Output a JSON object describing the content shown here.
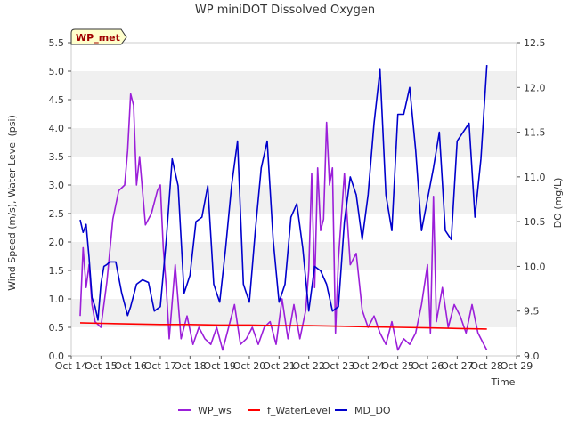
{
  "chart_data": {
    "type": "line",
    "title": "WP miniDOT Dissolved Oxygen",
    "badge": "WP_met",
    "xlabel": "Time",
    "ylabel_left": "Wind Speed (m/s), Water Level (psi)",
    "ylabel_right": "DO (mg/L)",
    "x_ticks": [
      "Oct 14",
      "Oct 15",
      "Oct 16",
      "Oct 17",
      "Oct 18",
      "Oct 19",
      "Oct 20",
      "Oct 21",
      "Oct 22",
      "Oct 23",
      "Oct 24",
      "Oct 25",
      "Oct 26",
      "Oct 27",
      "Oct 28",
      "Oct 29"
    ],
    "x_range": [
      14,
      29
    ],
    "ylim_left": [
      0.0,
      5.5
    ],
    "yticks_left": [
      "0.0",
      "0.5",
      "1.0",
      "1.5",
      "2.0",
      "2.5",
      "3.0",
      "3.5",
      "4.0",
      "4.5",
      "5.0",
      "5.5"
    ],
    "ylim_right": [
      9.0,
      12.5
    ],
    "yticks_right": [
      "9.0",
      "9.5",
      "10.0",
      "10.5",
      "11.0",
      "11.5",
      "12.0",
      "12.5"
    ],
    "grid": "horizontal bands",
    "legend_position": "bottom",
    "series": [
      {
        "name": "WP_ws",
        "color": "#9b1fd9",
        "axis": "left",
        "x": [
          14.3,
          14.4,
          14.5,
          14.6,
          14.7,
          14.8,
          15.0,
          15.2,
          15.4,
          15.6,
          15.8,
          15.9,
          16.0,
          16.1,
          16.2,
          16.3,
          16.4,
          16.5,
          16.7,
          16.9,
          17.0,
          17.1,
          17.2,
          17.3,
          17.5,
          17.7,
          17.9,
          18.1,
          18.3,
          18.5,
          18.7,
          18.9,
          19.1,
          19.3,
          19.5,
          19.7,
          19.9,
          20.1,
          20.3,
          20.5,
          20.7,
          20.9,
          21.1,
          21.3,
          21.5,
          21.7,
          21.9,
          22.0,
          22.1,
          22.2,
          22.3,
          22.4,
          22.5,
          22.6,
          22.7,
          22.8,
          22.9,
          23.0,
          23.2,
          23.4,
          23.6,
          23.8,
          24.0,
          24.2,
          24.4,
          24.6,
          24.8,
          25.0,
          25.2,
          25.4,
          25.6,
          25.8,
          26.0,
          26.1,
          26.2,
          26.3,
          26.5,
          26.7,
          26.9,
          27.1,
          27.3,
          27.5,
          27.7,
          27.9,
          28.0
        ],
        "values": [
          0.7,
          1.9,
          1.2,
          1.6,
          0.9,
          0.6,
          0.5,
          1.3,
          2.4,
          2.9,
          3.0,
          3.6,
          4.6,
          4.4,
          3.0,
          3.5,
          2.9,
          2.3,
          2.5,
          2.9,
          3.0,
          1.9,
          1.2,
          0.3,
          1.6,
          0.3,
          0.7,
          0.2,
          0.5,
          0.3,
          0.2,
          0.5,
          0.1,
          0.5,
          0.9,
          0.2,
          0.3,
          0.5,
          0.2,
          0.5,
          0.6,
          0.2,
          1.0,
          0.3,
          0.9,
          0.3,
          0.8,
          1.5,
          3.2,
          1.2,
          3.3,
          2.2,
          2.4,
          4.1,
          3.0,
          3.3,
          0.4,
          1.7,
          3.2,
          1.6,
          1.8,
          0.8,
          0.5,
          0.7,
          0.4,
          0.2,
          0.6,
          0.1,
          0.3,
          0.2,
          0.4,
          0.9,
          1.6,
          0.4,
          2.8,
          0.6,
          1.2,
          0.5,
          0.9,
          0.7,
          0.4,
          0.9,
          0.4,
          0.2,
          0.1
        ]
      },
      {
        "name": "f_WaterLevel",
        "color": "#ff0000",
        "axis": "left",
        "x": [
          14.3,
          15.0,
          16.0,
          17.0,
          18.0,
          19.0,
          20.0,
          21.0,
          22.0,
          23.0,
          24.0,
          25.0,
          26.0,
          27.0,
          28.0
        ],
        "values": [
          0.58,
          0.57,
          0.56,
          0.55,
          0.55,
          0.54,
          0.54,
          0.53,
          0.53,
          0.52,
          0.51,
          0.5,
          0.49,
          0.48,
          0.47
        ]
      },
      {
        "name": "MD_DO",
        "color": "#0000cc",
        "axis": "right",
        "x": [
          14.3,
          14.4,
          14.5,
          14.6,
          14.7,
          14.8,
          14.9,
          15.0,
          15.1,
          15.2,
          15.3,
          15.5,
          15.7,
          15.9,
          16.0,
          16.2,
          16.4,
          16.6,
          16.8,
          17.0,
          17.2,
          17.4,
          17.6,
          17.8,
          18.0,
          18.2,
          18.4,
          18.6,
          18.8,
          19.0,
          19.2,
          19.4,
          19.6,
          19.8,
          20.0,
          20.2,
          20.4,
          20.6,
          20.8,
          21.0,
          21.2,
          21.4,
          21.6,
          21.8,
          22.0,
          22.2,
          22.4,
          22.6,
          22.8,
          23.0,
          23.2,
          23.4,
          23.6,
          23.8,
          24.0,
          24.2,
          24.4,
          24.6,
          24.8,
          25.0,
          25.2,
          25.4,
          25.6,
          25.8,
          26.0,
          26.2,
          26.4,
          26.6,
          26.8,
          27.0,
          27.2,
          27.4,
          27.6,
          27.8,
          28.0
        ],
        "values": [
          10.52,
          10.38,
          10.47,
          10.1,
          9.65,
          9.55,
          9.4,
          9.8,
          10.0,
          10.02,
          10.05,
          10.05,
          9.7,
          9.45,
          9.55,
          9.8,
          9.85,
          9.82,
          9.5,
          9.55,
          10.3,
          11.2,
          10.9,
          9.7,
          9.9,
          10.5,
          10.55,
          10.9,
          9.8,
          9.6,
          10.2,
          10.9,
          11.4,
          9.8,
          9.6,
          10.4,
          11.1,
          11.4,
          10.3,
          9.6,
          9.8,
          10.55,
          10.7,
          10.2,
          9.5,
          10.0,
          9.95,
          9.8,
          9.5,
          9.55,
          10.5,
          11.0,
          10.8,
          10.3,
          10.8,
          11.6,
          12.2,
          10.8,
          10.4,
          11.7,
          11.7,
          12.0,
          11.3,
          10.4,
          10.75,
          11.1,
          11.5,
          10.4,
          10.3,
          11.4,
          11.5,
          11.6,
          10.55,
          11.2,
          12.25
        ]
      }
    ]
  }
}
